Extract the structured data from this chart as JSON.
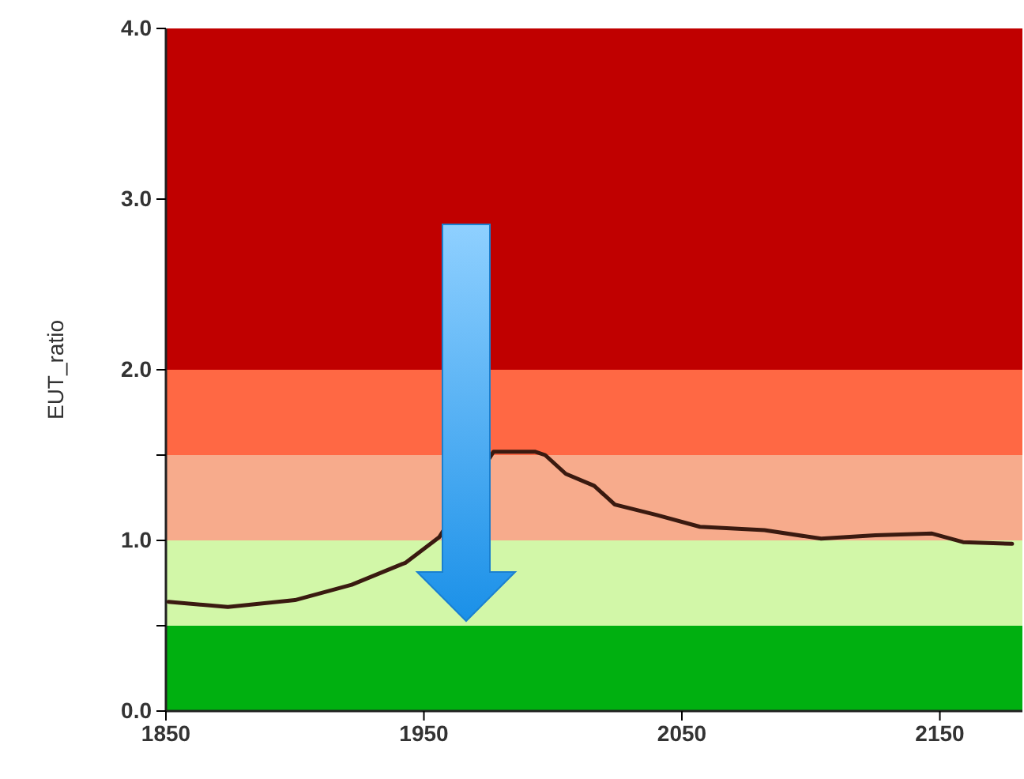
{
  "chart_data": {
    "type": "line",
    "ylabel": "EUT_ratio",
    "x": [
      1851,
      1874,
      1900,
      1922,
      1943,
      1956,
      1977,
      1993,
      1997,
      2005,
      2016,
      2024,
      2040,
      2057,
      2082,
      2104,
      2125,
      2147,
      2159,
      2178
    ],
    "series": [
      {
        "color": "#3a1a10",
        "values": [
          0.64,
          0.61,
          0.65,
          0.74,
          0.87,
          1.02,
          1.52,
          1.52,
          1.5,
          1.39,
          1.32,
          1.21,
          1.15,
          1.08,
          1.06,
          1.01,
          1.03,
          1.04,
          0.99,
          0.98
        ]
      }
    ],
    "xlim": [
      1850,
      2182
    ],
    "xticks": [
      1850,
      1950,
      2050,
      2150
    ],
    "ylim": [
      0,
      4
    ],
    "yticks": [
      {
        "value": 0,
        "label": "0.0"
      },
      {
        "value": 0.5,
        "label": null
      },
      {
        "value": 1,
        "label": "1.0"
      },
      {
        "value": 1.5,
        "label": null
      },
      {
        "value": 2,
        "label": "2.0"
      },
      {
        "value": 3,
        "label": "3.0"
      },
      {
        "value": 4,
        "label": "4.0"
      }
    ],
    "bands": [
      {
        "axis": "y",
        "from": 0,
        "to": 0.5,
        "color": "#00b010"
      },
      {
        "axis": "y",
        "from": 0.5,
        "to": 1,
        "color": "#d2f7a8"
      },
      {
        "axis": "y",
        "from": 1,
        "to": 1.5,
        "color": "#f7ab8c"
      },
      {
        "axis": "y",
        "from": 1.5,
        "to": 2,
        "color": "#ff6844"
      },
      {
        "axis": "y",
        "from": 2,
        "to": 4,
        "color": "#c00000"
      }
    ],
    "grid": false,
    "marker": "none",
    "line_style": "solid"
  }
}
